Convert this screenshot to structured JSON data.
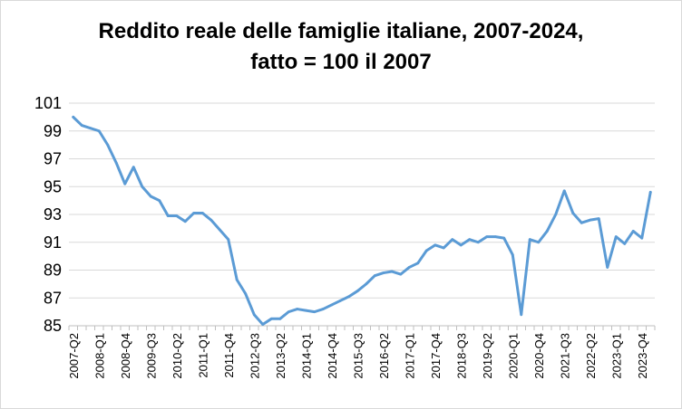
{
  "chart_data": {
    "type": "line",
    "title_line1": "Reddito reale delle famiglie italiane, 2007-2024,",
    "title_line2": "fatto = 100 il 2007",
    "xlabel": "",
    "ylabel": "",
    "ylim": [
      85,
      101
    ],
    "yticks": [
      85,
      87,
      89,
      91,
      93,
      95,
      97,
      99,
      101
    ],
    "grid": true,
    "legend": "none",
    "line_color": "#5B9BD5",
    "tick_labels": [
      "2007-Q2",
      "2008-Q1",
      "2008-Q4",
      "2009-Q3",
      "2010-Q2",
      "2011-Q1",
      "2011-Q4",
      "2012-Q3",
      "2013-Q2",
      "2014-Q1",
      "2014-Q4",
      "2015-Q3",
      "2016-Q2",
      "2017-Q1",
      "2017-Q4",
      "2018-Q3",
      "2019-Q2",
      "2020-Q1",
      "2020-Q4",
      "2021-Q3",
      "2022-Q2",
      "2023-Q1",
      "2023-Q4"
    ],
    "x": [
      "2007-Q2",
      "2007-Q3",
      "2007-Q4",
      "2008-Q1",
      "2008-Q2",
      "2008-Q3",
      "2008-Q4",
      "2009-Q1",
      "2009-Q2",
      "2009-Q3",
      "2009-Q4",
      "2010-Q1",
      "2010-Q2",
      "2010-Q3",
      "2010-Q4",
      "2011-Q1",
      "2011-Q2",
      "2011-Q3",
      "2011-Q4",
      "2012-Q1",
      "2012-Q2",
      "2012-Q3",
      "2012-Q4",
      "2013-Q1",
      "2013-Q2",
      "2013-Q3",
      "2013-Q4",
      "2014-Q1",
      "2014-Q2",
      "2014-Q3",
      "2014-Q4",
      "2015-Q1",
      "2015-Q2",
      "2015-Q3",
      "2015-Q4",
      "2016-Q1",
      "2016-Q2",
      "2016-Q3",
      "2016-Q4",
      "2017-Q1",
      "2017-Q2",
      "2017-Q3",
      "2017-Q4",
      "2018-Q1",
      "2018-Q2",
      "2018-Q3",
      "2018-Q4",
      "2019-Q1",
      "2019-Q2",
      "2019-Q3",
      "2019-Q4",
      "2020-Q1",
      "2020-Q2",
      "2020-Q3",
      "2020-Q4",
      "2021-Q1",
      "2021-Q2",
      "2021-Q3",
      "2021-Q4",
      "2022-Q1",
      "2022-Q2",
      "2022-Q3",
      "2022-Q4",
      "2023-Q1",
      "2023-Q2",
      "2023-Q3",
      "2023-Q4",
      "2024-Q1"
    ],
    "values": [
      100.0,
      99.4,
      99.2,
      99.0,
      98.0,
      96.7,
      95.2,
      96.4,
      95.0,
      94.3,
      94.0,
      92.9,
      92.9,
      92.5,
      93.1,
      93.1,
      92.6,
      91.9,
      91.2,
      88.3,
      87.3,
      85.8,
      85.1,
      85.5,
      85.5,
      86.0,
      86.2,
      86.1,
      86.0,
      86.2,
      86.5,
      86.8,
      87.1,
      87.5,
      88.0,
      88.6,
      88.8,
      88.9,
      88.7,
      89.2,
      89.5,
      90.4,
      90.8,
      90.6,
      91.2,
      90.8,
      91.2,
      91.0,
      91.4,
      91.4,
      91.3,
      90.1,
      85.8,
      91.2,
      91.0,
      91.8,
      93.0,
      94.7,
      93.1,
      92.4,
      92.6,
      92.7,
      89.2,
      91.4,
      90.9,
      91.8,
      91.3,
      94.6
    ]
  }
}
